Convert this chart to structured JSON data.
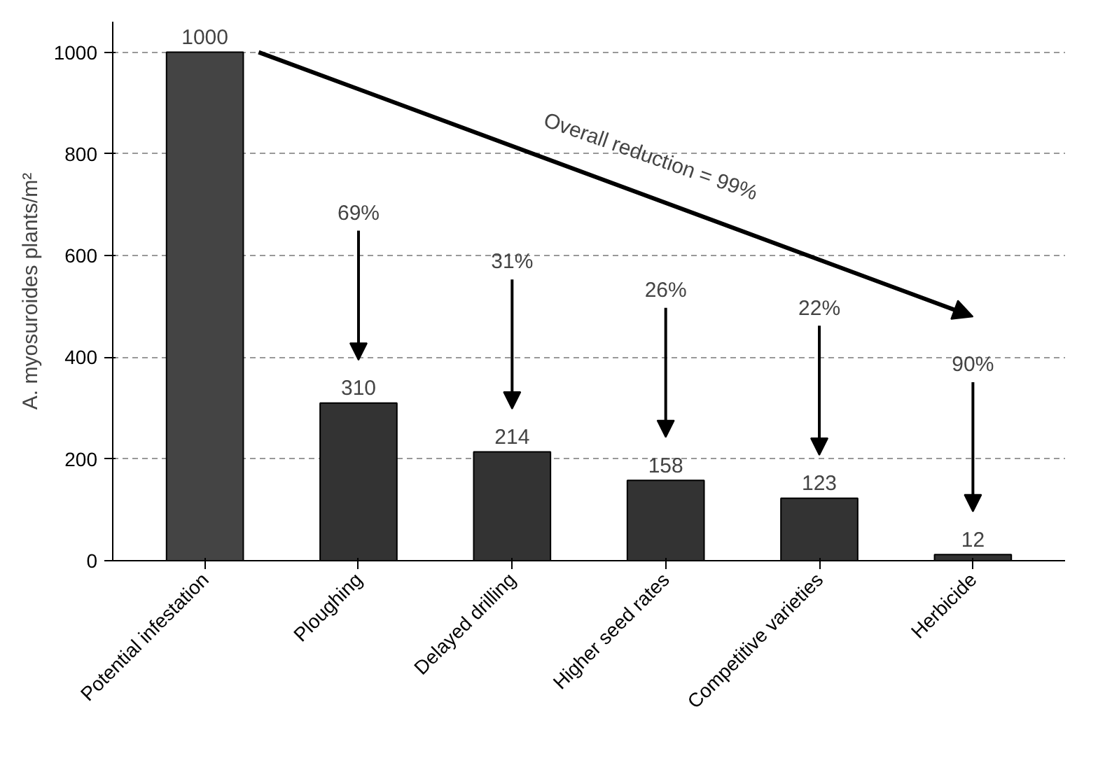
{
  "chart_data": {
    "type": "bar",
    "ylabel": "A. myosuroides plants/m²",
    "categories": [
      "Potential infestation",
      "Ploughing",
      "Delayed drilling",
      "Higher seed rates",
      "Competitive varieties",
      "Herbicide"
    ],
    "values": [
      1000,
      310,
      214,
      158,
      123,
      12
    ],
    "colors": [
      "#444444",
      "#333333",
      "#333333",
      "#333333",
      "#333333",
      "#333333"
    ],
    "data_labels": true,
    "ylim": [
      0,
      1060
    ],
    "yticks": [
      0,
      200,
      400,
      600,
      800,
      1000
    ],
    "grid": "y",
    "annotations": [
      "Overall reduction = 99%",
      "69%",
      "31%",
      "26%",
      "22%",
      "90%"
    ]
  }
}
